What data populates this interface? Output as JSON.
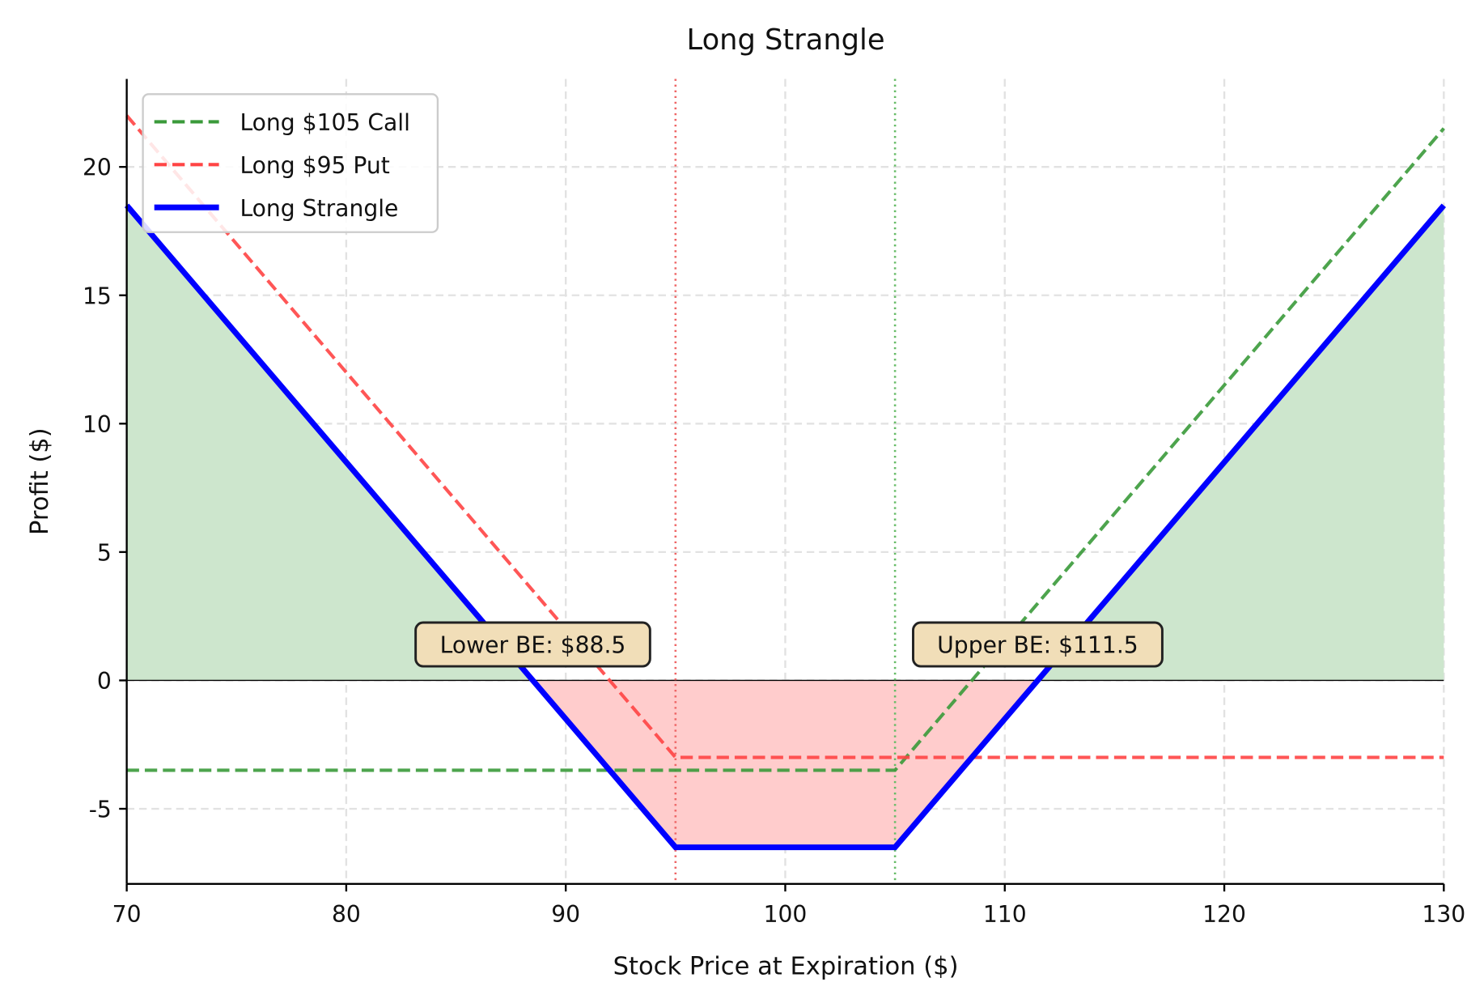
{
  "chart_data": {
    "type": "line",
    "title": "Long Strangle",
    "xlabel": "Stock Price at Expiration ($)",
    "ylabel": "Profit ($)",
    "xlim": [
      70,
      130
    ],
    "ylim": [
      -7.925,
      23.425
    ],
    "xticks": [
      70,
      80,
      90,
      100,
      110,
      120,
      130
    ],
    "yticks": [
      -5,
      0,
      5,
      10,
      15,
      20
    ],
    "ytick_labels": [
      "-5",
      "0",
      "5",
      "10",
      "15",
      "20"
    ],
    "grid": true,
    "legend_placement": "upper-left",
    "series": [
      {
        "name": "Long $105 Call",
        "color": "#3a9a3a",
        "style": "dashed",
        "points": [
          [
            70,
            -3.5
          ],
          [
            105,
            -3.5
          ],
          [
            130,
            21.5
          ]
        ]
      },
      {
        "name": "Long $95 Put",
        "color": "#ff4444",
        "style": "dashed",
        "points": [
          [
            70,
            22
          ],
          [
            95,
            -3
          ],
          [
            130,
            -3
          ]
        ]
      },
      {
        "name": "Long Strangle",
        "color": "#0000ff",
        "style": "solid",
        "points": [
          [
            70,
            18.5
          ],
          [
            95,
            -6.5
          ],
          [
            105,
            -6.5
          ],
          [
            130,
            18.5
          ]
        ]
      }
    ],
    "fill_profit_color": "#cde6cd",
    "fill_loss_color": "#ffcccc",
    "strike_lines": [
      {
        "x": 95,
        "color": "#ee6666"
      },
      {
        "x": 105,
        "color": "#66bb66"
      }
    ],
    "annotations": [
      {
        "text": "Lower BE: $88.5",
        "x": 88.5,
        "y": 1.4
      },
      {
        "text": "Upper BE: $111.5",
        "x": 111.5,
        "y": 1.4
      }
    ],
    "annotation_box_color": "#f1deb8"
  }
}
